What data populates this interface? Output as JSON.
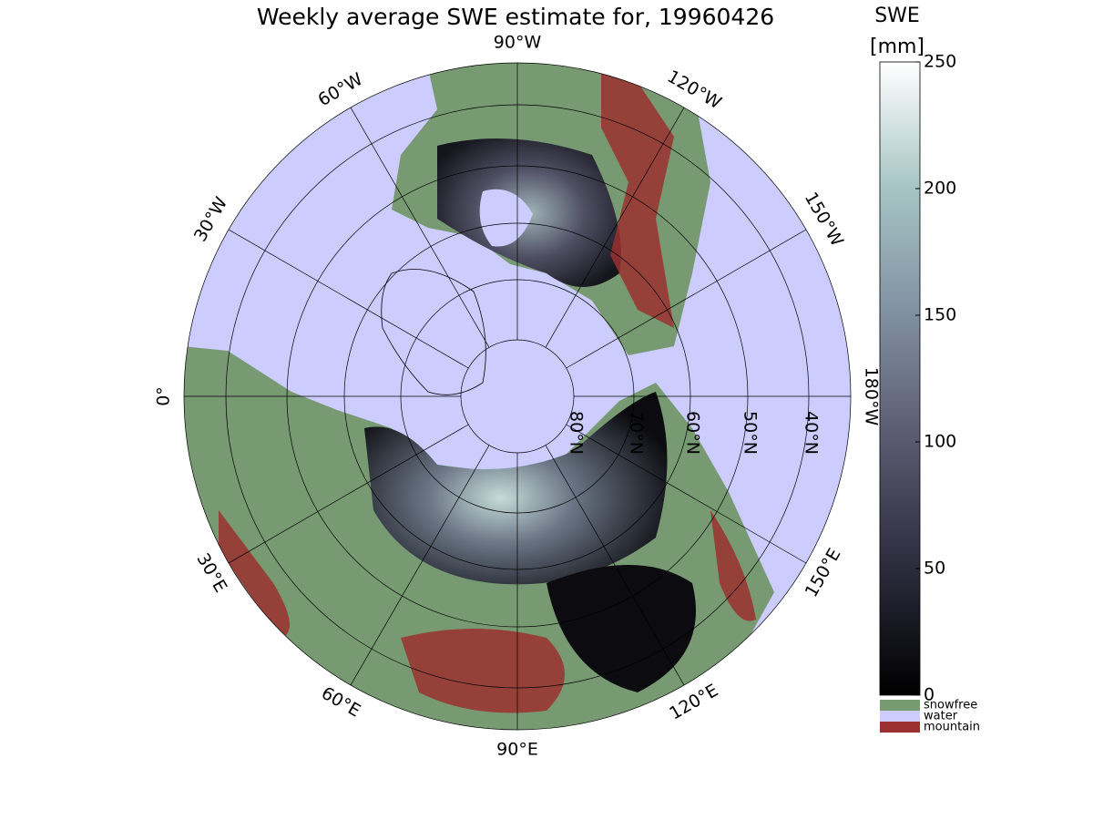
{
  "title": "Weekly average SWE estimate for, 19960426",
  "map": {
    "lon_labels": [
      "0°",
      "30°W",
      "60°W",
      "90°W",
      "120°W",
      "150°W",
      "180°W",
      "150°E",
      "120°E",
      "90°E",
      "60°E",
      "30°E"
    ],
    "lat_labels": [
      "80°N",
      "70°N",
      "60°N",
      "50°N",
      "40°N"
    ]
  },
  "colorbar": {
    "label": [
      "SWE",
      "[mm]"
    ],
    "ylim": [
      0,
      250
    ],
    "yticks": [
      0,
      50,
      100,
      150,
      200,
      250
    ],
    "colors": [
      "#000000",
      "#2b2b3c",
      "#59596f",
      "#7f8fa0",
      "#a6c4c4",
      "#ffffff"
    ],
    "legend": [
      {
        "name": "snowfree",
        "color": "#779a72"
      },
      {
        "name": "water",
        "color": "#ccccff"
      },
      {
        "name": "mountain",
        "color": "#9b3030"
      }
    ]
  }
}
